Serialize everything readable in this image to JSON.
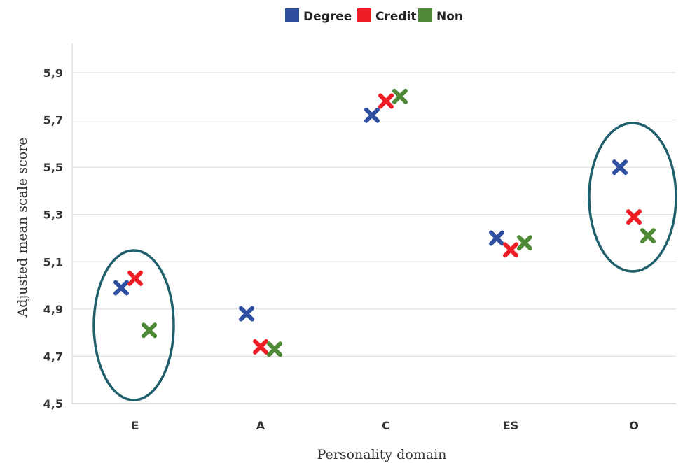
{
  "chart_data": {
    "type": "scatter",
    "title": "",
    "xlabel": "Personality domain",
    "ylabel": "Adjusted mean scale score",
    "categories": [
      "E",
      "A",
      "C",
      "ES",
      "O"
    ],
    "ylim": [
      4.5,
      5.9
    ],
    "yticks": [
      "4,5",
      "4,7",
      "4,9",
      "5,1",
      "5,3",
      "5,5",
      "5,7",
      "5,9"
    ],
    "yticks_values": [
      4.5,
      4.7,
      4.9,
      5.1,
      5.3,
      5.5,
      5.7,
      5.9
    ],
    "grid": true,
    "legend_position": "top-center",
    "marker": "x",
    "series": [
      {
        "name": "Degree",
        "color": "#2e4fa0",
        "values": [
          4.99,
          4.88,
          5.72,
          5.2,
          5.5
        ]
      },
      {
        "name": "Credit",
        "color": "#ee1c24",
        "values": [
          5.03,
          4.74,
          5.78,
          5.15,
          5.29
        ]
      },
      {
        "name": "Non",
        "color": "#4e8a36",
        "values": [
          4.81,
          4.73,
          5.8,
          5.18,
          5.21
        ]
      }
    ],
    "highlights": [
      {
        "category": "E",
        "shape": "ellipse",
        "color": "#1e5f6b"
      },
      {
        "category": "O",
        "shape": "ellipse",
        "color": "#1e5f6b"
      }
    ]
  }
}
